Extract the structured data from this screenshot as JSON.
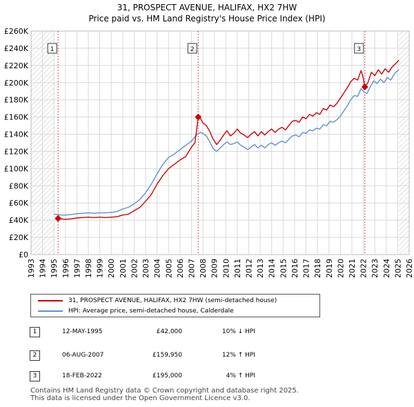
{
  "title_line1": "31, PROSPECT AVENUE, HALIFAX, HX2 7HW",
  "title_line2": "Price paid vs. HM Land Registry's House Price Index (HPI)",
  "colors": {
    "property": "#cc0000",
    "hpi": "#5b8fd0",
    "hatch": "#c9c9c9",
    "grid": "#d8d8d8",
    "sale_marker_line": "#dd4444"
  },
  "chart_data": {
    "type": "line",
    "title": "Price paid vs. HM Land Registry's House Price Index (HPI)",
    "xlim": [
      1993,
      2026
    ],
    "ylim": [
      0,
      260000
    ],
    "y_ticks": [
      {
        "value": 0,
        "label": "£0"
      },
      {
        "value": 20000,
        "label": "£20K"
      },
      {
        "value": 40000,
        "label": "£40K"
      },
      {
        "value": 60000,
        "label": "£60K"
      },
      {
        "value": 80000,
        "label": "£80K"
      },
      {
        "value": 100000,
        "label": "£100K"
      },
      {
        "value": 120000,
        "label": "£120K"
      },
      {
        "value": 140000,
        "label": "£140K"
      },
      {
        "value": 160000,
        "label": "£160K"
      },
      {
        "value": 180000,
        "label": "£180K"
      },
      {
        "value": 200000,
        "label": "£200K"
      },
      {
        "value": 220000,
        "label": "£220K"
      },
      {
        "value": 240000,
        "label": "£240K"
      },
      {
        "value": 260000,
        "label": "£260K"
      }
    ],
    "x_ticks": [
      "1993",
      "1994",
      "1995",
      "1996",
      "1997",
      "1998",
      "1999",
      "2000",
      "2001",
      "2002",
      "2003",
      "2004",
      "2005",
      "2006",
      "2007",
      "2008",
      "2009",
      "2010",
      "2011",
      "2012",
      "2013",
      "2014",
      "2015",
      "2016",
      "2017",
      "2018",
      "2019",
      "2020",
      "2021",
      "2022",
      "2023",
      "2024",
      "2025",
      "2026"
    ],
    "hatch_ranges": [
      [
        1993,
        1995.0
      ],
      [
        2025.1,
        2026
      ]
    ],
    "series": [
      {
        "name": "31, PROSPECT AVENUE, HALIFAX, HX2 7HW (semi-detached house)",
        "color_key": "property",
        "points": [
          [
            1995.36,
            42000
          ],
          [
            1995.6,
            41500
          ],
          [
            1996.0,
            41000
          ],
          [
            1996.5,
            41500
          ],
          [
            1997.0,
            42500
          ],
          [
            1997.5,
            43000
          ],
          [
            1998.0,
            43500
          ],
          [
            1998.5,
            43000
          ],
          [
            1999.0,
            43500
          ],
          [
            1999.5,
            43000
          ],
          [
            2000.0,
            43500
          ],
          [
            2000.5,
            44000
          ],
          [
            2001.0,
            46000
          ],
          [
            2001.5,
            47000
          ],
          [
            2002.0,
            51000
          ],
          [
            2002.5,
            55000
          ],
          [
            2003.0,
            62000
          ],
          [
            2003.5,
            70000
          ],
          [
            2004.0,
            82000
          ],
          [
            2004.5,
            92000
          ],
          [
            2005.0,
            100000
          ],
          [
            2005.5,
            105000
          ],
          [
            2006.0,
            110000
          ],
          [
            2006.5,
            114000
          ],
          [
            2007.0,
            125000
          ],
          [
            2007.3,
            130000
          ],
          [
            2007.59,
            159950
          ],
          [
            2007.8,
            158000
          ],
          [
            2008.0,
            153000
          ],
          [
            2008.3,
            150000
          ],
          [
            2008.6,
            143000
          ],
          [
            2008.9,
            134000
          ],
          [
            2009.2,
            128000
          ],
          [
            2009.5,
            133000
          ],
          [
            2009.8,
            139000
          ],
          [
            2010.1,
            144000
          ],
          [
            2010.4,
            138000
          ],
          [
            2010.7,
            141000
          ],
          [
            2011.0,
            146000
          ],
          [
            2011.3,
            141000
          ],
          [
            2011.6,
            139000
          ],
          [
            2011.9,
            136000
          ],
          [
            2012.2,
            140000
          ],
          [
            2012.5,
            143000
          ],
          [
            2012.8,
            138000
          ],
          [
            2013.1,
            143000
          ],
          [
            2013.4,
            139000
          ],
          [
            2013.7,
            143000
          ],
          [
            2014.0,
            146000
          ],
          [
            2014.3,
            142000
          ],
          [
            2014.6,
            146000
          ],
          [
            2014.9,
            148000
          ],
          [
            2015.2,
            145000
          ],
          [
            2015.5,
            150000
          ],
          [
            2015.8,
            155000
          ],
          [
            2016.1,
            156000
          ],
          [
            2016.4,
            154000
          ],
          [
            2016.7,
            160000
          ],
          [
            2017.0,
            158000
          ],
          [
            2017.3,
            163000
          ],
          [
            2017.6,
            161000
          ],
          [
            2017.9,
            165000
          ],
          [
            2018.2,
            163000
          ],
          [
            2018.5,
            170000
          ],
          [
            2018.8,
            168000
          ],
          [
            2019.1,
            174000
          ],
          [
            2019.4,
            172000
          ],
          [
            2019.7,
            176000
          ],
          [
            2020.0,
            182000
          ],
          [
            2020.3,
            188000
          ],
          [
            2020.6,
            194000
          ],
          [
            2020.9,
            201000
          ],
          [
            2021.2,
            205000
          ],
          [
            2021.5,
            203000
          ],
          [
            2021.8,
            214000
          ],
          [
            2022.0,
            205000
          ],
          [
            2022.13,
            195000
          ],
          [
            2022.4,
            200000
          ],
          [
            2022.7,
            212000
          ],
          [
            2023.0,
            208000
          ],
          [
            2023.3,
            215000
          ],
          [
            2023.6,
            210000
          ],
          [
            2023.9,
            216000
          ],
          [
            2024.2,
            212000
          ],
          [
            2024.5,
            218000
          ],
          [
            2024.8,
            222000
          ],
          [
            2025.1,
            226000
          ]
        ]
      },
      {
        "name": "HPI: Average price, semi-detached house, Calderdale",
        "color_key": "hpi",
        "points": [
          [
            1995.0,
            47000
          ],
          [
            1995.5,
            46000
          ],
          [
            1996.0,
            46000
          ],
          [
            1996.5,
            46500
          ],
          [
            1997.0,
            47500
          ],
          [
            1997.5,
            48000
          ],
          [
            1998.0,
            48500
          ],
          [
            1998.5,
            48000
          ],
          [
            1999.0,
            48500
          ],
          [
            1999.5,
            48500
          ],
          [
            2000.0,
            49000
          ],
          [
            2000.5,
            50000
          ],
          [
            2001.0,
            53000
          ],
          [
            2001.5,
            55000
          ],
          [
            2002.0,
            59000
          ],
          [
            2002.5,
            64000
          ],
          [
            2003.0,
            72000
          ],
          [
            2003.5,
            82000
          ],
          [
            2004.0,
            94000
          ],
          [
            2004.5,
            105000
          ],
          [
            2005.0,
            113000
          ],
          [
            2005.5,
            117000
          ],
          [
            2006.0,
            122000
          ],
          [
            2006.5,
            127000
          ],
          [
            2007.0,
            132000
          ],
          [
            2007.5,
            140000
          ],
          [
            2007.8,
            142000
          ],
          [
            2008.0,
            141000
          ],
          [
            2008.3,
            138000
          ],
          [
            2008.6,
            131000
          ],
          [
            2008.9,
            123000
          ],
          [
            2009.2,
            120000
          ],
          [
            2009.5,
            124000
          ],
          [
            2009.8,
            128000
          ],
          [
            2010.1,
            131000
          ],
          [
            2010.4,
            128000
          ],
          [
            2010.7,
            129000
          ],
          [
            2011.0,
            131000
          ],
          [
            2011.3,
            127000
          ],
          [
            2011.6,
            125000
          ],
          [
            2011.9,
            122000
          ],
          [
            2012.2,
            125000
          ],
          [
            2012.5,
            128000
          ],
          [
            2012.8,
            124000
          ],
          [
            2013.1,
            127000
          ],
          [
            2013.4,
            124000
          ],
          [
            2013.7,
            128000
          ],
          [
            2014.0,
            130000
          ],
          [
            2014.3,
            127000
          ],
          [
            2014.6,
            130000
          ],
          [
            2014.9,
            132000
          ],
          [
            2015.2,
            130000
          ],
          [
            2015.5,
            134000
          ],
          [
            2015.8,
            138000
          ],
          [
            2016.1,
            139000
          ],
          [
            2016.4,
            137000
          ],
          [
            2016.7,
            142000
          ],
          [
            2017.0,
            141000
          ],
          [
            2017.3,
            145000
          ],
          [
            2017.6,
            144000
          ],
          [
            2017.9,
            147000
          ],
          [
            2018.2,
            146000
          ],
          [
            2018.5,
            151000
          ],
          [
            2018.8,
            150000
          ],
          [
            2019.1,
            155000
          ],
          [
            2019.4,
            154000
          ],
          [
            2019.7,
            157000
          ],
          [
            2020.0,
            161000
          ],
          [
            2020.3,
            167000
          ],
          [
            2020.6,
            173000
          ],
          [
            2020.9,
            180000
          ],
          [
            2021.2,
            185000
          ],
          [
            2021.5,
            184000
          ],
          [
            2021.8,
            193000
          ],
          [
            2022.0,
            190000
          ],
          [
            2022.3,
            187000
          ],
          [
            2022.6,
            195000
          ],
          [
            2022.9,
            202000
          ],
          [
            2023.2,
            199000
          ],
          [
            2023.5,
            204000
          ],
          [
            2023.8,
            200000
          ],
          [
            2024.1,
            206000
          ],
          [
            2024.4,
            203000
          ],
          [
            2024.7,
            210000
          ],
          [
            2025.0,
            214000
          ],
          [
            2025.1,
            215000
          ]
        ]
      }
    ],
    "sale_markers": [
      {
        "label": "1",
        "x": 1995.36,
        "y": 42000
      },
      {
        "label": "2",
        "x": 2007.59,
        "y": 159950
      },
      {
        "label": "3",
        "x": 2022.13,
        "y": 195000
      }
    ]
  },
  "legend": {
    "property_label": "31, PROSPECT AVENUE, HALIFAX, HX2 7HW (semi-detached house)",
    "hpi_label": "HPI: Average price, semi-detached house, Calderdale"
  },
  "sales": [
    {
      "num": "1",
      "date": "12-MAY-1995",
      "price": "£42,000",
      "hpi": "10% ↓ HPI"
    },
    {
      "num": "2",
      "date": "06-AUG-2007",
      "price": "£159,950",
      "hpi": "12% ↑ HPI"
    },
    {
      "num": "3",
      "date": "18-FEB-2022",
      "price": "£195,000",
      "hpi": "4% ↑ HPI"
    }
  ],
  "footer": {
    "line1": "Contains HM Land Registry data © Crown copyright and database right 2025.",
    "line2": "This data is licensed under the Open Government Licence v3.0."
  }
}
